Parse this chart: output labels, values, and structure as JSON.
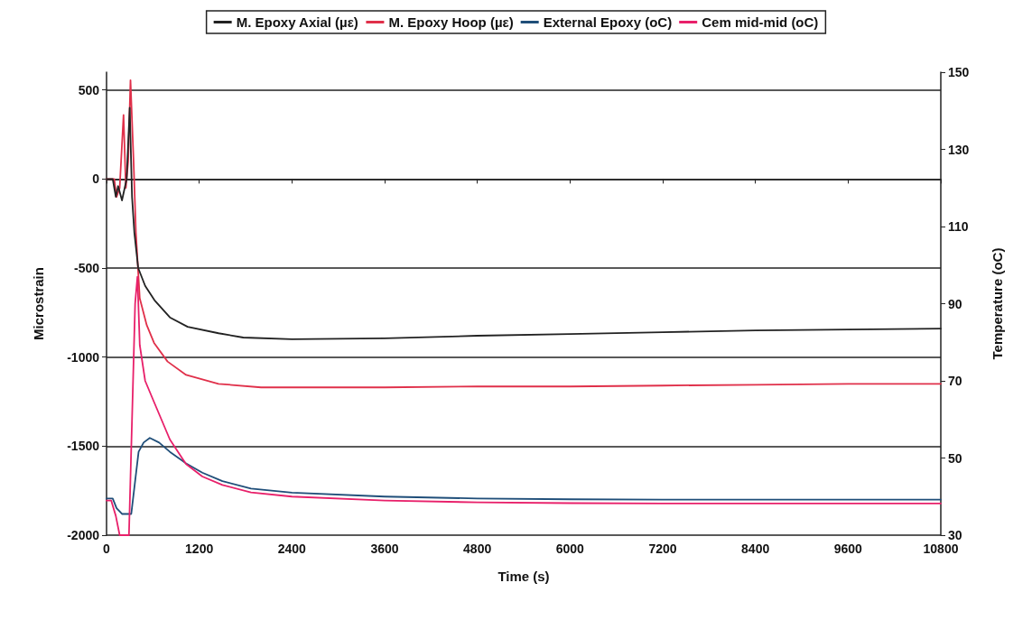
{
  "chart_data": {
    "type": "line",
    "xlabel": "Time (s)",
    "ylabel": "Microstrain",
    "y2label": "Temperature (oC)",
    "xlim": [
      0,
      10800
    ],
    "xticks": [
      0,
      1200,
      2400,
      3600,
      4800,
      6000,
      7200,
      8400,
      9600,
      10800
    ],
    "ylim": [
      -2000,
      600
    ],
    "yticks": [
      -2000,
      -1500,
      -1000,
      -500,
      0,
      500
    ],
    "y2lim": [
      30,
      150
    ],
    "y2ticks": [
      30,
      50,
      70,
      90,
      110,
      130,
      150
    ],
    "grid": "y",
    "legend": "top",
    "marker": "none",
    "line_style": "solid",
    "series": [
      {
        "name": "M. Epoxy Axial (µε)",
        "color": "#222222",
        "x": [
          0,
          80,
          120,
          150,
          200,
          230,
          260,
          300,
          330,
          360,
          410,
          500,
          620,
          820,
          1050,
          1450,
          1770,
          2400,
          3600,
          4800,
          6000,
          7200,
          8400,
          9600,
          10800
        ],
        "values": [
          0,
          0,
          -100,
          -40,
          -120,
          -60,
          0,
          400,
          -100,
          -300,
          -500,
          -600,
          -680,
          -777,
          -830,
          -866,
          -890,
          -900,
          -895,
          -880,
          -870,
          -860,
          -850,
          -845,
          -840
        ]
      },
      {
        "name": "M. Epoxy Hoop (µε)",
        "color": "#e0304a",
        "x": [
          0,
          100,
          130,
          170,
          220,
          250,
          280,
          310,
          350,
          380,
          430,
          520,
          615,
          790,
          1030,
          1450,
          2000,
          2400,
          3600,
          4800,
          6000,
          7200,
          8400,
          9600,
          10800
        ],
        "values": [
          0,
          0,
          -100,
          -50,
          360,
          -50,
          100,
          555,
          100,
          -300,
          -670,
          -820,
          -920,
          -1025,
          -1100,
          -1150,
          -1170,
          -1170,
          -1170,
          -1165,
          -1165,
          -1160,
          -1155,
          -1150,
          -1150
        ]
      },
      {
        "name": "External Epoxy (oC)",
        "color": "#1f4e79",
        "axis": "y2",
        "x": [
          0,
          80,
          130,
          200,
          320,
          370,
          415,
          480,
          560,
          680,
          820,
          1030,
          1240,
          1500,
          1870,
          2400,
          3600,
          4800,
          6000,
          7200,
          8400,
          9600,
          10800
        ],
        "values": [
          39.5,
          39.5,
          37,
          35.5,
          35.5,
          44,
          51.6,
          54,
          55.2,
          54,
          51.6,
          48.6,
          46.2,
          44,
          42.1,
          41,
          40,
          39.5,
          39.3,
          39.2,
          39.2,
          39.2,
          39.2
        ]
      },
      {
        "name": "Cem mid-mid (oC)",
        "color": "#e8206a",
        "axis": "y2",
        "x": [
          0,
          60,
          120,
          170,
          230,
          290,
          330,
          370,
          400,
          430,
          500,
          615,
          820,
          1030,
          1240,
          1500,
          1870,
          2400,
          3600,
          4800,
          6000,
          7200,
          8400,
          9600,
          10800
        ],
        "values": [
          39,
          39,
          35,
          30,
          30,
          30,
          60,
          90,
          97,
          79.3,
          70,
          64.5,
          54.8,
          48.4,
          45.2,
          43,
          41.1,
          40,
          39,
          38.5,
          38.3,
          38.2,
          38.2,
          38.2,
          38.2
        ]
      }
    ]
  }
}
